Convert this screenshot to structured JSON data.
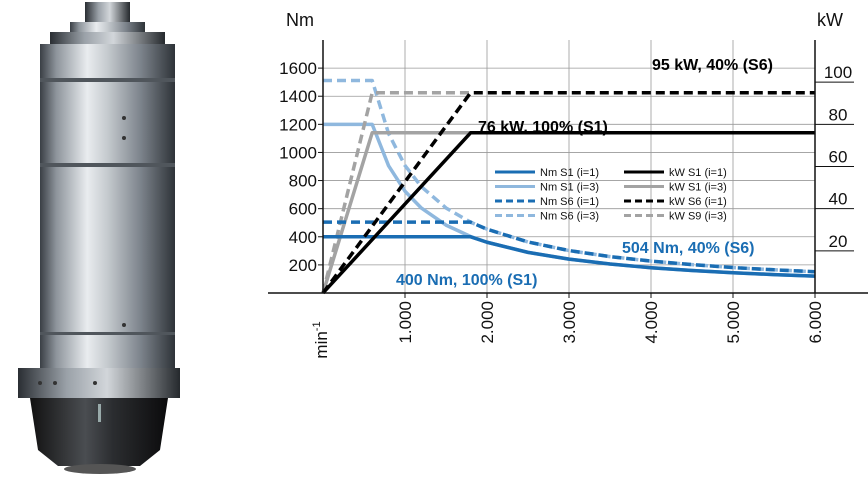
{
  "product_image": {
    "alt": "motor spindle",
    "icon": "spindle-motor-illustration"
  },
  "chart_data": {
    "type": "line",
    "title": "",
    "xlabel": "min-1",
    "x_unit_base": "min",
    "x_unit_sup": "-1",
    "ylabel_left": "Nm",
    "ylabel_right": "kW",
    "xlim": [
      0,
      6000
    ],
    "ylim_left": [
      0,
      1800
    ],
    "ylim_right": [
      0,
      120
    ],
    "grid": true,
    "legend_position": "center",
    "x_ticks": [
      {
        "value": 1000,
        "label": "1.000"
      },
      {
        "value": 2000,
        "label": "2.000"
      },
      {
        "value": 3000,
        "label": "3.000"
      },
      {
        "value": 4000,
        "label": "4.000"
      },
      {
        "value": 5000,
        "label": "5.000"
      },
      {
        "value": 6000,
        "label": "6.000"
      }
    ],
    "y_left_ticks": [
      {
        "value": 200,
        "label": "200"
      },
      {
        "value": 400,
        "label": "400"
      },
      {
        "value": 600,
        "label": "600"
      },
      {
        "value": 800,
        "label": "800"
      },
      {
        "value": 1000,
        "label": "1000"
      },
      {
        "value": 1200,
        "label": "1200"
      },
      {
        "value": 1400,
        "label": "1400"
      },
      {
        "value": 1600,
        "label": "1600"
      }
    ],
    "y_right_ticks": [
      {
        "value": 20,
        "label": "20"
      },
      {
        "value": 40,
        "label": "40"
      },
      {
        "value": 60,
        "label": "60"
      },
      {
        "value": 80,
        "label": "80"
      },
      {
        "value": 100,
        "label": "100"
      }
    ],
    "series": [
      {
        "name": "Nm S1 (i=1)",
        "axis": "left",
        "color": "#1a6db3",
        "dash": "solid",
        "x": [
          0,
          1800,
          2000,
          2500,
          3000,
          3500,
          4000,
          4500,
          5000,
          5500,
          6000
        ],
        "y": [
          400,
          400,
          361,
          289,
          241,
          206,
          180,
          160,
          144,
          131,
          120
        ]
      },
      {
        "name": "Nm S1 (i=3)",
        "axis": "left",
        "color": "#8fb8de",
        "dash": "solid",
        "x": [
          0,
          600,
          800,
          1000,
          1200,
          1500,
          1800,
          2000,
          2500,
          3000,
          3500,
          4000,
          4500,
          5000,
          5500,
          6000
        ],
        "y": [
          1200,
          1200,
          905,
          724,
          604,
          483,
          402,
          361,
          289,
          241,
          206,
          180,
          160,
          144,
          131,
          120
        ]
      },
      {
        "name": "Nm S6 (i=1)",
        "axis": "left",
        "color": "#1a6db3",
        "dash": "dashed",
        "x": [
          0,
          1800,
          2000,
          2500,
          3000,
          3500,
          4000,
          4500,
          5000,
          5500,
          6000
        ],
        "y": [
          504,
          504,
          454,
          363,
          302,
          259,
          227,
          202,
          181,
          165,
          151
        ]
      },
      {
        "name": "Nm S6 (i=3)",
        "axis": "left",
        "color": "#8fb8de",
        "dash": "dashed",
        "x": [
          0,
          600,
          800,
          1000,
          1200,
          1500,
          1800,
          2000,
          2500,
          3000,
          3500,
          4000,
          4500,
          5000,
          5500,
          6000
        ],
        "y": [
          1512,
          1512,
          1134,
          907,
          756,
          605,
          504,
          454,
          363,
          302,
          259,
          227,
          202,
          181,
          165,
          151
        ]
      },
      {
        "name": "kW S1 (i=1)",
        "axis": "right",
        "color": "#000000",
        "dash": "solid",
        "x": [
          0,
          1800,
          6000
        ],
        "y": [
          0,
          76,
          76
        ]
      },
      {
        "name": "kW S1 (i=3)",
        "axis": "right",
        "color": "#a3a3a3",
        "dash": "solid",
        "x": [
          0,
          600,
          1800
        ],
        "y": [
          0,
          76,
          76
        ]
      },
      {
        "name": "kW S6 (i=1)",
        "axis": "right",
        "color": "#000000",
        "dash": "dashed",
        "x": [
          0,
          1800,
          6000
        ],
        "y": [
          0,
          95,
          95
        ]
      },
      {
        "name": "kW S9 (i=3)",
        "axis": "right",
        "color": "#a3a3a3",
        "dash": "dashed",
        "x": [
          0,
          600,
          1800
        ],
        "y": [
          0,
          95,
          95
        ]
      }
    ],
    "legend_order": [
      0,
      4,
      1,
      5,
      2,
      6,
      3,
      7
    ],
    "annotations": [
      {
        "id": "kw-s6",
        "text": "95 kW, 40% (S6)",
        "color": "#000000"
      },
      {
        "id": "kw-s1",
        "text": "76 kW, 100% (S1)",
        "color": "#000000"
      },
      {
        "id": "nm-s6",
        "text": "504 Nm, 40% (S6)",
        "color": "#1a6db3"
      },
      {
        "id": "nm-s1",
        "text": "400 Nm, 100% (S1)",
        "color": "#1a6db3"
      }
    ]
  }
}
